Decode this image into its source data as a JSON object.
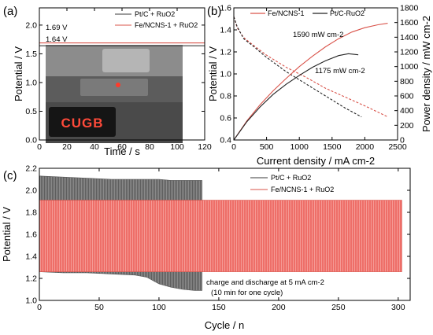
{
  "colors": {
    "ptc": "#3a3a3a",
    "fe": "#d9534a",
    "fe_fill": "#ef6f6a",
    "ptc_fill": "#808080",
    "photo": "#6a6a6a",
    "led": "#ff4a3a"
  },
  "chart_data": [
    {
      "type": "line",
      "panel": "(a)",
      "xlabel": "Time / s",
      "ylabel": "Potential / V",
      "xlim": [
        0,
        120
      ],
      "ylim": [
        0,
        2.3
      ],
      "xticks": [
        0,
        20,
        40,
        60,
        80,
        100,
        120
      ],
      "yticks": [
        0.0,
        0.5,
        1.0,
        1.5,
        2.0
      ],
      "xtick_labels": [
        "0",
        "20",
        "40",
        "60",
        "80",
        "100",
        "120"
      ],
      "ytick_labels": [
        "0.0",
        "0.5",
        "1.0",
        "1.5",
        "2.0"
      ],
      "legend_position": "top-right",
      "series": [
        {
          "name": "Pt/C + RuO2",
          "x": [
            0,
            120
          ],
          "y": [
            1.64,
            1.64
          ]
        },
        {
          "name": "Fe/NCNS-1 + RuO2",
          "x": [
            0,
            120
          ],
          "y": [
            1.69,
            1.69
          ]
        }
      ],
      "annotations": [
        "1.69 V",
        "1.64 V"
      ],
      "inset": {
        "display_text": "CUGB"
      }
    },
    {
      "type": "line",
      "panel": "(b)",
      "xlabel": "Current density / mA cm-2",
      "ylabel": "Potential / V",
      "y2label": "Power density / mW cm-2",
      "xlim": [
        0,
        2500
      ],
      "ylim": [
        0.4,
        1.6
      ],
      "y2lim": [
        0,
        1800
      ],
      "xticks": [
        0,
        500,
        1000,
        1500,
        2000,
        2500
      ],
      "yticks": [
        0.4,
        0.6,
        0.8,
        1.0,
        1.2,
        1.4,
        1.6
      ],
      "y2ticks": [
        0,
        200,
        400,
        600,
        800,
        1000,
        1200,
        1400,
        1600,
        1800
      ],
      "xtick_labels": [
        "0",
        "500",
        "1000",
        "1500",
        "2000",
        "2500"
      ],
      "ytick_labels": [
        "0.4",
        "0.6",
        "0.8",
        "1.0",
        "1.2",
        "1.4",
        "1.6"
      ],
      "y2tick_labels": [
        "0",
        "200",
        "400",
        "600",
        "800",
        "1000",
        "1200",
        "1400",
        "1600",
        "1800"
      ],
      "legend_position": "top",
      "legend_entries": [
        "Fe/NCNS-1",
        "Pt/C-RuO2"
      ],
      "series": [
        {
          "name": "Fe/NCNS-1",
          "kind": "polarization",
          "axis": "left",
          "x": [
            0,
            50,
            150,
            300,
            500,
            800,
            1100,
            1400,
            1700,
            2000,
            2350
          ],
          "y": [
            1.52,
            1.42,
            1.33,
            1.26,
            1.17,
            1.06,
            0.97,
            0.87,
            0.79,
            0.71,
            0.61
          ]
        },
        {
          "name": "Pt/C-RuO2",
          "kind": "polarization",
          "axis": "left",
          "x": [
            0,
            50,
            150,
            300,
            500,
            800,
            1100,
            1400,
            1700,
            1950
          ],
          "y": [
            1.52,
            1.43,
            1.32,
            1.25,
            1.15,
            1.02,
            0.91,
            0.8,
            0.69,
            0.61
          ]
        },
        {
          "name": "Fe/NCNS-1",
          "kind": "power",
          "axis": "right",
          "x": [
            0,
            200,
            400,
            600,
            800,
            1000,
            1200,
            1400,
            1600,
            1800,
            2000,
            2200,
            2350
          ],
          "y": [
            0,
            260,
            480,
            670,
            840,
            1000,
            1140,
            1270,
            1380,
            1470,
            1530,
            1570,
            1590
          ]
        },
        {
          "name": "Pt/C-RuO2",
          "kind": "power",
          "axis": "right",
          "x": [
            0,
            200,
            400,
            600,
            800,
            1000,
            1200,
            1400,
            1600,
            1750,
            1900
          ],
          "y": [
            0,
            250,
            450,
            620,
            760,
            880,
            990,
            1080,
            1150,
            1175,
            1160
          ]
        }
      ],
      "annotations": [
        "1590 mW cm-2",
        "1175 mW cm-2"
      ]
    },
    {
      "type": "area",
      "panel": "(c)",
      "xlabel": "Cycle / n",
      "ylabel": "Potential / V",
      "xlim": [
        0,
        310
      ],
      "ylim": [
        1.0,
        2.2
      ],
      "xticks": [
        0,
        50,
        100,
        150,
        200,
        250,
        300
      ],
      "yticks": [
        1.0,
        1.2,
        1.4,
        1.6,
        1.8,
        2.0,
        2.2
      ],
      "xtick_labels": [
        "0",
        "50",
        "100",
        "150",
        "200",
        "250",
        "300"
      ],
      "ytick_labels": [
        "1.0",
        "1.2",
        "1.4",
        "1.6",
        "1.8",
        "2.0",
        "2.2"
      ],
      "legend_position": "top-right",
      "series": [
        {
          "name": "Pt/C + RuO2",
          "x": [
            0,
            20,
            40,
            60,
            80,
            90,
            100,
            110,
            120,
            130,
            136
          ],
          "upper": [
            2.13,
            2.12,
            2.11,
            2.1,
            2.1,
            2.1,
            2.1,
            2.09,
            2.09,
            2.09,
            2.09
          ],
          "lower": [
            1.26,
            1.25,
            1.25,
            1.24,
            1.23,
            1.21,
            1.15,
            1.12,
            1.1,
            1.09,
            1.09
          ]
        },
        {
          "name": "Fe/NCNS-1 + RuO2",
          "x": [
            0,
            100,
            200,
            303
          ],
          "upper": [
            1.91,
            1.91,
            1.91,
            1.91
          ],
          "lower": [
            1.26,
            1.26,
            1.26,
            1.26
          ]
        }
      ],
      "annotations": [
        "charge and discharge at 5 mA cm-2",
        "(10 min for one cycle)"
      ]
    }
  ]
}
